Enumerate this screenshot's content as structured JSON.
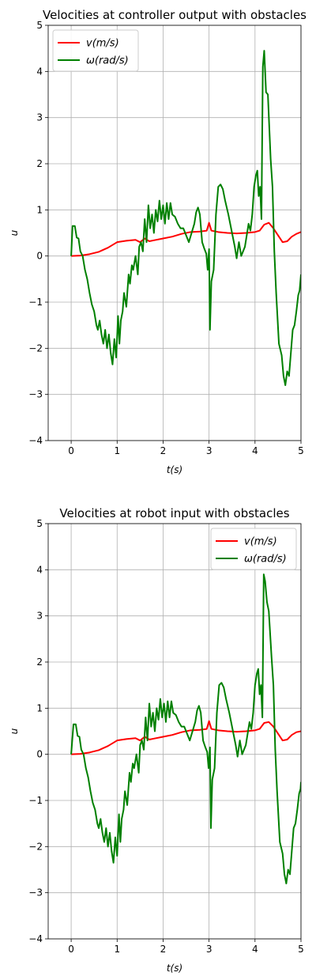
{
  "chart_data": [
    {
      "type": "line",
      "title": "Velocities at controller output with obstacles",
      "xlabel": "t(s)",
      "ylabel": "u",
      "xlim": [
        -0.5,
        5
      ],
      "ylim": [
        -4,
        5
      ],
      "xticks": [
        "0",
        "1",
        "2",
        "3",
        "4",
        "5"
      ],
      "yticks": [
        "−4",
        "−3",
        "−2",
        "−1",
        "0",
        "1",
        "2",
        "3",
        "4",
        "5"
      ],
      "grid": true,
      "legend_position": "top-left",
      "series": [
        {
          "name": "v(m/s)",
          "color": "#ff0000",
          "x": [
            0,
            0.2,
            0.4,
            0.6,
            0.8,
            1.0,
            1.2,
            1.4,
            1.5,
            1.6,
            1.7,
            1.8,
            2.0,
            2.2,
            2.4,
            2.6,
            2.8,
            2.95,
            3.0,
            3.05,
            3.2,
            3.4,
            3.6,
            3.8,
            4.0,
            4.1,
            4.2,
            4.3,
            4.4,
            4.5,
            4.6,
            4.7,
            4.8,
            4.9,
            5.0
          ],
          "y": [
            0.0,
            0.01,
            0.04,
            0.09,
            0.18,
            0.3,
            0.33,
            0.35,
            0.3,
            0.38,
            0.32,
            0.34,
            0.38,
            0.42,
            0.48,
            0.52,
            0.53,
            0.55,
            0.72,
            0.55,
            0.52,
            0.5,
            0.49,
            0.5,
            0.52,
            0.55,
            0.68,
            0.72,
            0.6,
            0.45,
            0.3,
            0.32,
            0.42,
            0.48,
            0.52
          ]
        },
        {
          "name": "ω(rad/s)",
          "color": "#008000",
          "x": [
            0,
            0.03,
            0.08,
            0.12,
            0.16,
            0.2,
            0.25,
            0.3,
            0.35,
            0.4,
            0.45,
            0.5,
            0.55,
            0.58,
            0.62,
            0.66,
            0.7,
            0.74,
            0.78,
            0.82,
            0.86,
            0.9,
            0.94,
            0.98,
            1.02,
            1.05,
            1.08,
            1.12,
            1.15,
            1.2,
            1.25,
            1.28,
            1.32,
            1.35,
            1.4,
            1.45,
            1.48,
            1.52,
            1.56,
            1.6,
            1.64,
            1.68,
            1.72,
            1.76,
            1.8,
            1.84,
            1.88,
            1.92,
            1.96,
            2.0,
            2.04,
            2.08,
            2.12,
            2.16,
            2.2,
            2.26,
            2.32,
            2.38,
            2.44,
            2.5,
            2.56,
            2.62,
            2.68,
            2.72,
            2.76,
            2.8,
            2.85,
            2.9,
            2.94,
            2.97,
            3.0,
            3.02,
            3.05,
            3.1,
            3.15,
            3.2,
            3.25,
            3.3,
            3.35,
            3.42,
            3.5,
            3.56,
            3.6,
            3.65,
            3.7,
            3.78,
            3.82,
            3.86,
            3.9,
            3.94,
            3.98,
            4.02,
            4.05,
            4.08,
            4.11,
            4.14,
            4.17,
            4.2,
            4.24,
            4.28,
            4.34,
            4.38,
            4.42,
            4.46,
            4.52,
            4.58,
            4.62,
            4.66,
            4.7,
            4.74,
            4.78,
            4.82,
            4.86,
            4.9,
            4.94,
            4.97,
            5.0
          ],
          "y": [
            0.0,
            0.65,
            0.65,
            0.4,
            0.38,
            0.1,
            0.0,
            -0.3,
            -0.5,
            -0.8,
            -1.05,
            -1.2,
            -1.5,
            -1.6,
            -1.4,
            -1.7,
            -1.9,
            -1.6,
            -2.0,
            -1.7,
            -2.1,
            -2.35,
            -1.8,
            -2.2,
            -1.3,
            -1.9,
            -1.4,
            -1.2,
            -0.8,
            -1.1,
            -0.4,
            -0.6,
            -0.2,
            -0.3,
            0.0,
            -0.4,
            0.2,
            0.3,
            0.1,
            0.8,
            0.3,
            1.1,
            0.6,
            0.9,
            0.5,
            1.0,
            0.75,
            1.2,
            0.8,
            1.1,
            0.7,
            1.15,
            0.8,
            1.15,
            0.9,
            0.85,
            0.7,
            0.6,
            0.6,
            0.45,
            0.3,
            0.5,
            0.7,
            0.95,
            1.05,
            0.9,
            0.3,
            0.15,
            0.05,
            -0.3,
            0.15,
            -1.6,
            -0.55,
            -0.3,
            0.9,
            1.5,
            1.55,
            1.45,
            1.2,
            0.9,
            0.5,
            0.2,
            -0.05,
            0.3,
            0.0,
            0.2,
            0.45,
            0.7,
            0.55,
            0.9,
            1.5,
            1.75,
            1.85,
            1.3,
            1.5,
            0.8,
            4.1,
            4.45,
            3.55,
            3.5,
            2.1,
            1.5,
            0.1,
            -0.8,
            -1.9,
            -2.15,
            -2.6,
            -2.8,
            -2.5,
            -2.6,
            -2.1,
            -1.6,
            -1.5,
            -1.2,
            -0.85,
            -0.75,
            -0.4
          ]
        }
      ]
    },
    {
      "type": "line",
      "title": "Velocities at robot input with obstacles",
      "xlabel": "t(s)",
      "ylabel": "u",
      "xlim": [
        -0.5,
        5
      ],
      "ylim": [
        -4,
        5
      ],
      "xticks": [
        "0",
        "1",
        "2",
        "3",
        "4",
        "5"
      ],
      "yticks": [
        "−4",
        "−3",
        "−2",
        "−1",
        "0",
        "1",
        "2",
        "3",
        "4",
        "5"
      ],
      "grid": true,
      "legend_position": "top-right",
      "series": [
        {
          "name": "v(m/s)",
          "color": "#ff0000",
          "x": [
            0,
            0.2,
            0.4,
            0.6,
            0.8,
            1.0,
            1.2,
            1.4,
            1.5,
            1.6,
            1.7,
            1.8,
            2.0,
            2.2,
            2.4,
            2.6,
            2.8,
            2.95,
            3.0,
            3.05,
            3.2,
            3.4,
            3.6,
            3.8,
            4.0,
            4.1,
            4.2,
            4.3,
            4.4,
            4.5,
            4.6,
            4.7,
            4.8,
            4.9,
            5.0
          ],
          "y": [
            0.0,
            0.01,
            0.04,
            0.09,
            0.18,
            0.3,
            0.33,
            0.35,
            0.3,
            0.38,
            0.32,
            0.34,
            0.38,
            0.42,
            0.48,
            0.52,
            0.53,
            0.55,
            0.72,
            0.55,
            0.52,
            0.5,
            0.49,
            0.5,
            0.52,
            0.55,
            0.68,
            0.7,
            0.6,
            0.45,
            0.3,
            0.32,
            0.42,
            0.48,
            0.5
          ]
        },
        {
          "name": "ω(rad/s)",
          "color": "#008000",
          "x": [
            0,
            0.05,
            0.1,
            0.14,
            0.18,
            0.22,
            0.27,
            0.32,
            0.37,
            0.42,
            0.47,
            0.52,
            0.57,
            0.6,
            0.64,
            0.68,
            0.72,
            0.76,
            0.8,
            0.84,
            0.88,
            0.92,
            0.96,
            1.0,
            1.04,
            1.07,
            1.1,
            1.14,
            1.17,
            1.22,
            1.27,
            1.3,
            1.34,
            1.37,
            1.42,
            1.47,
            1.5,
            1.54,
            1.58,
            1.62,
            1.66,
            1.7,
            1.74,
            1.78,
            1.82,
            1.86,
            1.9,
            1.94,
            1.98,
            2.02,
            2.06,
            2.1,
            2.14,
            2.18,
            2.22,
            2.28,
            2.34,
            2.4,
            2.46,
            2.52,
            2.58,
            2.64,
            2.7,
            2.74,
            2.78,
            2.82,
            2.87,
            2.92,
            2.96,
            2.99,
            3.02,
            3.04,
            3.07,
            3.12,
            3.17,
            3.22,
            3.27,
            3.32,
            3.37,
            3.44,
            3.52,
            3.58,
            3.62,
            3.67,
            3.72,
            3.8,
            3.84,
            3.88,
            3.92,
            3.96,
            4.0,
            4.04,
            4.07,
            4.1,
            4.13,
            4.16,
            4.19,
            4.22,
            4.26,
            4.3,
            4.36,
            4.4,
            4.44,
            4.48,
            4.54,
            4.6,
            4.64,
            4.68,
            4.72,
            4.76,
            4.8,
            4.84,
            4.88,
            4.92,
            4.96,
            4.99,
            5.0
          ],
          "y": [
            0.0,
            0.65,
            0.65,
            0.4,
            0.38,
            0.1,
            0.0,
            -0.3,
            -0.5,
            -0.8,
            -1.05,
            -1.2,
            -1.5,
            -1.6,
            -1.4,
            -1.7,
            -1.9,
            -1.6,
            -2.0,
            -1.7,
            -2.1,
            -2.35,
            -1.8,
            -2.2,
            -1.3,
            -1.9,
            -1.4,
            -1.2,
            -0.8,
            -1.1,
            -0.4,
            -0.6,
            -0.2,
            -0.3,
            0.0,
            -0.4,
            0.2,
            0.3,
            0.1,
            0.8,
            0.3,
            1.1,
            0.6,
            0.9,
            0.5,
            1.0,
            0.75,
            1.2,
            0.8,
            1.1,
            0.7,
            1.15,
            0.8,
            1.15,
            0.9,
            0.85,
            0.7,
            0.6,
            0.6,
            0.45,
            0.3,
            0.5,
            0.7,
            0.95,
            1.05,
            0.9,
            0.3,
            0.15,
            0.05,
            -0.3,
            0.15,
            -1.6,
            -0.55,
            -0.3,
            0.9,
            1.5,
            1.55,
            1.45,
            1.2,
            0.9,
            0.5,
            0.2,
            -0.05,
            0.3,
            0.0,
            0.2,
            0.45,
            0.7,
            0.55,
            0.9,
            1.5,
            1.75,
            1.85,
            1.3,
            1.5,
            0.8,
            3.9,
            3.75,
            3.3,
            3.1,
            2.1,
            1.5,
            0.1,
            -0.8,
            -1.9,
            -2.15,
            -2.6,
            -2.8,
            -2.5,
            -2.6,
            -2.1,
            -1.6,
            -1.5,
            -1.2,
            -0.85,
            -0.75,
            -0.6
          ]
        }
      ]
    }
  ]
}
